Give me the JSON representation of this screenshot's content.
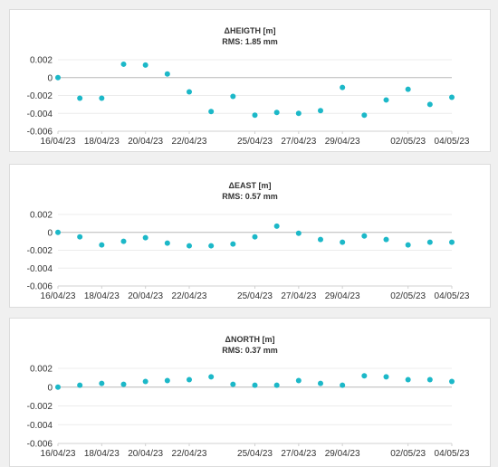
{
  "colors": {
    "point": "#1cb8c8",
    "zero_line": "#b8b8b8",
    "grid": "#ececec",
    "axis": "#d0d0d0"
  },
  "chart_data": [
    {
      "type": "scatter",
      "title": "ΔHEIGTH [m]",
      "subtitle": "RMS: 1.85 mm",
      "x_ticks": [
        "16/04/23",
        "18/04/23",
        "20/04/23",
        "22/04/23",
        "25/04/23",
        "27/04/23",
        "29/04/23",
        "02/05/23",
        "04/05/23"
      ],
      "y_ticks": [
        "0.002",
        "0",
        "-0.002",
        "-0.004",
        "-0.006"
      ],
      "y_tick_values": [
        0.002,
        0,
        -0.002,
        -0.004,
        -0.006
      ],
      "ylim": [
        -0.006,
        0.002
      ],
      "x": [
        "16/04/23",
        "17/04/23",
        "18/04/23",
        "19/04/23",
        "20/04/23",
        "21/04/23",
        "22/04/23",
        "23/04/23",
        "24/04/23",
        "25/04/23",
        "26/04/23",
        "27/04/23",
        "28/04/23",
        "29/04/23",
        "30/04/23",
        "01/05/23",
        "02/05/23",
        "03/05/23",
        "04/05/23"
      ],
      "values": [
        0.0,
        -0.0023,
        -0.0023,
        0.0015,
        0.0014,
        0.0004,
        -0.0016,
        -0.0038,
        -0.0021,
        -0.0042,
        -0.0039,
        -0.004,
        -0.0037,
        -0.0011,
        -0.0042,
        -0.0025,
        -0.0013,
        -0.003,
        -0.0022
      ]
    },
    {
      "type": "scatter",
      "title": "ΔEAST [m]",
      "subtitle": "RMS: 0.57 mm",
      "x_ticks": [
        "16/04/23",
        "18/04/23",
        "20/04/23",
        "22/04/23",
        "25/04/23",
        "27/04/23",
        "29/04/23",
        "02/05/23",
        "04/05/23"
      ],
      "y_ticks": [
        "0.002",
        "0",
        "-0.002",
        "-0.004",
        "-0.006"
      ],
      "y_tick_values": [
        0.002,
        0,
        -0.002,
        -0.004,
        -0.006
      ],
      "ylim": [
        -0.006,
        0.002
      ],
      "x": [
        "16/04/23",
        "17/04/23",
        "18/04/23",
        "19/04/23",
        "20/04/23",
        "21/04/23",
        "22/04/23",
        "23/04/23",
        "24/04/23",
        "25/04/23",
        "26/04/23",
        "27/04/23",
        "28/04/23",
        "29/04/23",
        "30/04/23",
        "01/05/23",
        "02/05/23",
        "03/05/23",
        "04/05/23"
      ],
      "values": [
        0.0,
        -0.0005,
        -0.0014,
        -0.001,
        -0.0006,
        -0.0012,
        -0.0015,
        -0.0015,
        -0.0013,
        -0.0005,
        0.0007,
        -0.0001,
        -0.0008,
        -0.0011,
        -0.0004,
        -0.0008,
        -0.0014,
        -0.0011,
        -0.0011
      ]
    },
    {
      "type": "scatter",
      "title": "ΔNORTH [m]",
      "subtitle": "RMS: 0.37 mm",
      "x_ticks": [
        "16/04/23",
        "18/04/23",
        "20/04/23",
        "22/04/23",
        "25/04/23",
        "27/04/23",
        "29/04/23",
        "02/05/23",
        "04/05/23"
      ],
      "y_ticks": [
        "0.002",
        "0",
        "-0.002",
        "-0.004",
        "-0.006"
      ],
      "y_tick_values": [
        0.002,
        0,
        -0.002,
        -0.004,
        -0.006
      ],
      "ylim": [
        -0.006,
        0.002
      ],
      "x": [
        "16/04/23",
        "17/04/23",
        "18/04/23",
        "19/04/23",
        "20/04/23",
        "21/04/23",
        "22/04/23",
        "23/04/23",
        "24/04/23",
        "25/04/23",
        "26/04/23",
        "27/04/23",
        "28/04/23",
        "29/04/23",
        "30/04/23",
        "01/05/23",
        "02/05/23",
        "03/05/23",
        "04/05/23"
      ],
      "values": [
        0.0,
        0.0002,
        0.0004,
        0.0003,
        0.0006,
        0.0007,
        0.0008,
        0.0011,
        0.0003,
        0.0002,
        0.0002,
        0.0007,
        0.0004,
        0.0002,
        0.0012,
        0.0011,
        0.0008,
        0.0008,
        0.0006
      ]
    }
  ]
}
